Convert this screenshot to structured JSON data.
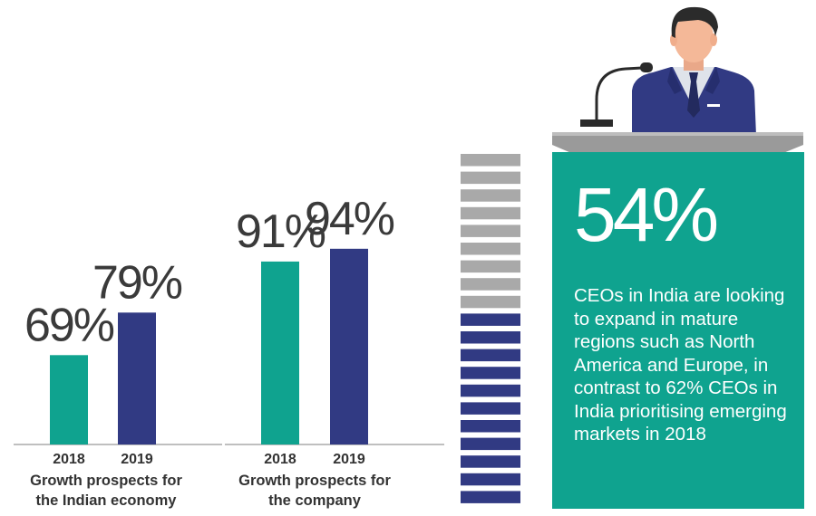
{
  "chart_data": [
    {
      "type": "bar",
      "categories": [
        "2018",
        "2019"
      ],
      "values": [
        69,
        79
      ],
      "value_labels": [
        "69%",
        "79%"
      ],
      "caption": [
        "Growth prospects for",
        "the Indian economy"
      ],
      "colors": [
        "#0fa38f",
        "#313a83"
      ]
    },
    {
      "type": "bar",
      "categories": [
        "2018",
        "2019"
      ],
      "values": [
        91,
        94
      ],
      "value_labels": [
        "91%",
        "94%"
      ],
      "caption": [
        "Growth prospects for",
        "the company"
      ],
      "colors": [
        "#0fa38f",
        "#313a83"
      ]
    }
  ],
  "stacked_indicator": {
    "total_bars": 20,
    "highlighted_bars": 11,
    "color_gray": "#a9a9a9",
    "color_highlight": "#313a83"
  },
  "stat_panel": {
    "value": "54%",
    "text": "CEOs in India are looking to expand in mature regions such as North America and Europe, in contrast to 62% CEOs in India prioritising emerging markets in 2018",
    "background": "#0fa38f"
  },
  "illustration": {
    "icon": "ceo-at-podium-icon",
    "colors": {
      "suit": "#313a83",
      "skin": "#f4b898",
      "hair": "#2b2b2b",
      "podium": "#9a9a9a"
    }
  }
}
